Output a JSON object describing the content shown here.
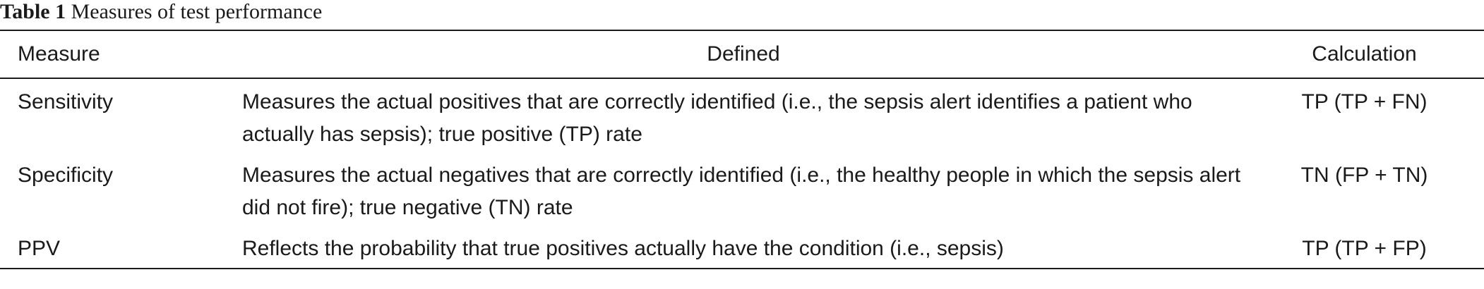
{
  "caption": {
    "label": "Table 1",
    "title": "Measures of test performance"
  },
  "table": {
    "headers": {
      "measure": "Measure",
      "defined": "Defined",
      "calculation": "Calculation"
    },
    "rows": [
      {
        "measure": "Sensitivity",
        "defined": "Measures the actual positives that are correctly identified (i.e., the sepsis alert identifies a patient who actually has sepsis); true positive (TP) rate",
        "calculation": "TP (TP + FN)"
      },
      {
        "measure": "Specificity",
        "defined": "Measures the actual negatives that are correctly identified (i.e., the healthy people in which the sepsis alert did not fire); true negative (TN) rate",
        "calculation": "TN (FP + TN)"
      },
      {
        "measure": "PPV",
        "defined": "Reflects the probability that true positives actually have the condition (i.e., sepsis)",
        "calculation": "TP (TP + FP)"
      }
    ]
  }
}
